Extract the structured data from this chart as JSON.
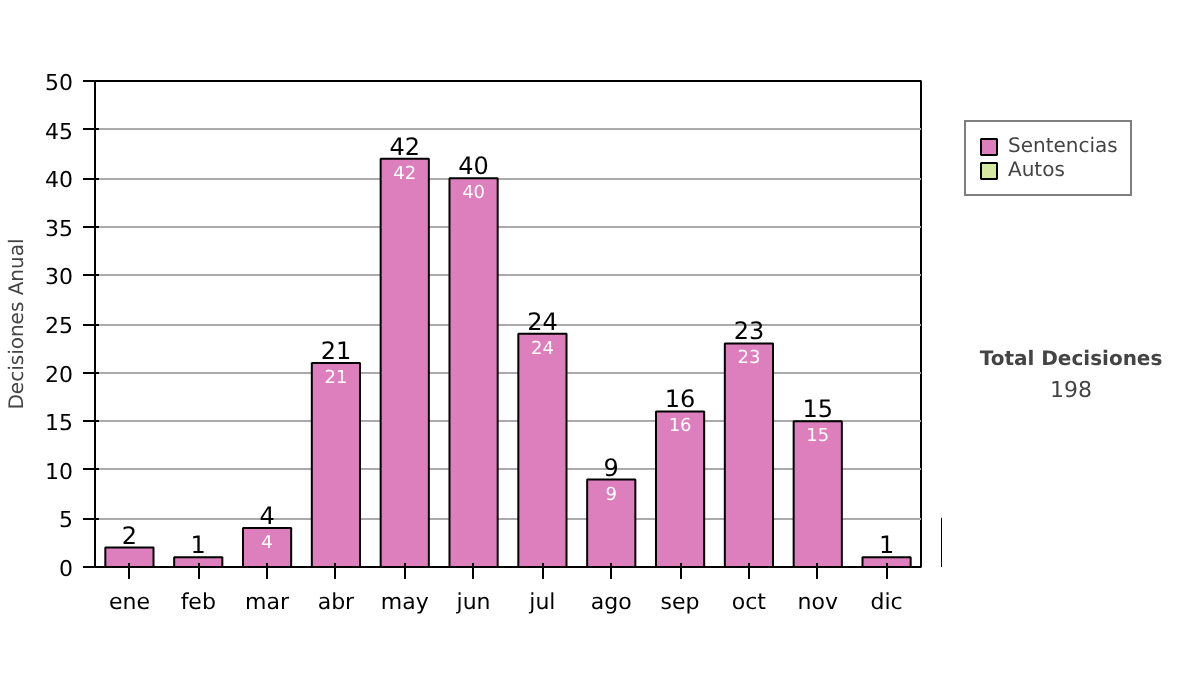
{
  "chart_data": {
    "type": "bar",
    "ylabel": "Decisiones Anual",
    "categories": [
      "ene",
      "feb",
      "mar",
      "abr",
      "may",
      "jun",
      "jul",
      "ago",
      "sep",
      "oct",
      "nov",
      "dic"
    ],
    "series": [
      {
        "name": "Sentencias",
        "color": "#dd7fbd",
        "values": [
          2,
          1,
          4,
          21,
          42,
          40,
          24,
          9,
          16,
          23,
          15,
          1
        ],
        "value_labels": [
          "2",
          "1",
          "4",
          "21",
          "42",
          "40",
          "24",
          "9",
          "16",
          "23",
          "15",
          "1"
        ]
      },
      {
        "name": "Autos",
        "color": "#d4e8a0",
        "values": [
          null,
          null,
          null,
          null,
          null,
          null,
          null,
          null,
          null,
          null,
          null,
          null
        ]
      }
    ],
    "ylim": [
      0,
      50
    ],
    "yticks": [
      0,
      5,
      10,
      15,
      20,
      25,
      30,
      35,
      40,
      45,
      50
    ],
    "grid": "y",
    "legend": "right",
    "annotations": [
      "Total Decisiones",
      "198",
      {
        "text": "4",
        "x": "mar",
        "y": 4
      },
      {
        "text": "21",
        "x": "abr",
        "y": 21
      },
      {
        "text": "42",
        "x": "may",
        "y": 42
      },
      {
        "text": "40",
        "x": "jun",
        "y": 40
      },
      {
        "text": "24",
        "x": "jul",
        "y": 24
      },
      {
        "text": "9",
        "x": "ago",
        "y": 9
      },
      {
        "text": "16",
        "x": "sep",
        "y": 16
      },
      {
        "text": "23",
        "x": "oct",
        "y": 23
      },
      {
        "text": "15",
        "x": "nov",
        "y": 15
      }
    ]
  }
}
